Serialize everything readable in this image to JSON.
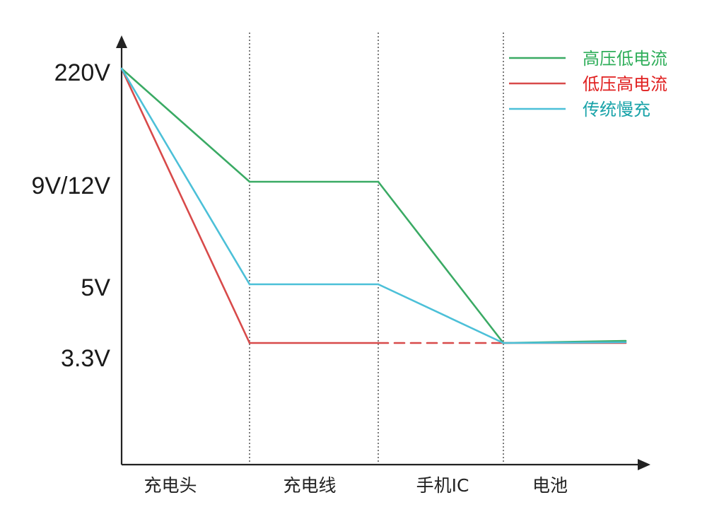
{
  "chart_data": {
    "type": "line",
    "categories": [
      "充电头",
      "充电线",
      "手机IC",
      "电池"
    ],
    "y_ticks": [
      {
        "label": "220V",
        "value": 220
      },
      {
        "label": "9V/12V",
        "value": 12
      },
      {
        "label": "5V",
        "value": 5
      },
      {
        "label": "3.3V",
        "value": 3.3
      }
    ],
    "y_scale": "categorical voltage levels (not to scale)",
    "grid": "vertical dotted separators between stages",
    "legend_position": "top-right",
    "series": [
      {
        "name": "高压低电流",
        "color": "#3aaa64",
        "values": [
          220,
          12,
          12,
          3.3
        ],
        "end_value": 3.3,
        "dashed_segments": []
      },
      {
        "name": "低压高电流",
        "color": "#d84a4a",
        "values": [
          220,
          3.3,
          3.3,
          3.3
        ],
        "end_value": 3.3,
        "dashed_segments": [
          [
            2,
            3
          ]
        ]
      },
      {
        "name": "传统慢充",
        "color": "#4cc0d8",
        "values": [
          220,
          5,
          5,
          3.3
        ],
        "end_value": 3.3,
        "dashed_segments": []
      }
    ],
    "legend_text_colors": [
      "#2fae5a",
      "#e02020",
      "#17a2a8"
    ]
  }
}
